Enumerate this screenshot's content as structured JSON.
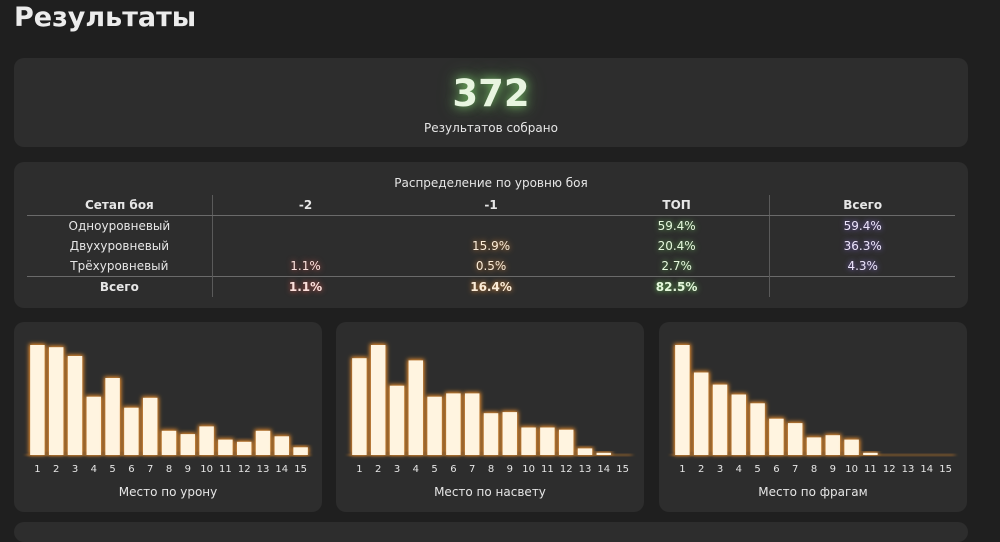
{
  "page": {
    "title": "Результаты"
  },
  "summary": {
    "count": "372",
    "label": "Результатов собрано"
  },
  "distribution": {
    "title": "Распределение по уровню боя",
    "headers": [
      "Сетап боя",
      "-2",
      "-1",
      "ТОП",
      "Всего"
    ],
    "rows": [
      {
        "name": "Одноуровневый",
        "m2": "",
        "m1": "",
        "top": "59.4%",
        "total": "59.4%"
      },
      {
        "name": "Двухуровневый",
        "m2": "",
        "m1": "15.9%",
        "top": "20.4%",
        "total": "36.3%"
      },
      {
        "name": "Трёхуровневый",
        "m2": "1.1%",
        "m1": "0.5%",
        "top": "2.7%",
        "total": "4.3%"
      }
    ],
    "totals": {
      "name": "Всего",
      "m2": "1.1%",
      "m1": "16.4%",
      "top": "82.5%",
      "total": ""
    }
  },
  "colors": {
    "background": "#1f1f1f",
    "card": "#2d2d2d",
    "bar_fill": "#fff4e0",
    "bar_glow": "#ff9a2e",
    "green_glow": "#78dc64",
    "red_glow": "#e65a50",
    "orange_glow": "#f0963c",
    "purple_glow": "#9678f0"
  },
  "chart_data": [
    {
      "type": "bar",
      "title": "Место по урону",
      "categories": [
        "1",
        "2",
        "3",
        "4",
        "5",
        "6",
        "7",
        "8",
        "9",
        "10",
        "11",
        "12",
        "13",
        "14",
        "15"
      ],
      "values": [
        100,
        98,
        90,
        53,
        70,
        43,
        52,
        22,
        19,
        26,
        14,
        12,
        22,
        17,
        7
      ],
      "ylim": [
        0,
        100
      ]
    },
    {
      "type": "bar",
      "title": "Место по насвету",
      "categories": [
        "1",
        "2",
        "3",
        "4",
        "5",
        "6",
        "7",
        "8",
        "9",
        "10",
        "11",
        "12",
        "13",
        "14",
        "15"
      ],
      "values": [
        88,
        100,
        63,
        86,
        53,
        56,
        56,
        38,
        39,
        25,
        25,
        23,
        6,
        2,
        0
      ],
      "ylim": [
        0,
        100
      ]
    },
    {
      "type": "bar",
      "title": "Место по фрагам",
      "categories": [
        "1",
        "2",
        "3",
        "4",
        "5",
        "6",
        "7",
        "8",
        "9",
        "10",
        "11",
        "12",
        "13",
        "14",
        "15"
      ],
      "values": [
        100,
        75,
        64,
        55,
        47,
        33,
        29,
        16,
        18,
        14,
        2,
        0,
        0,
        0,
        0
      ],
      "ylim": [
        0,
        100
      ]
    }
  ]
}
